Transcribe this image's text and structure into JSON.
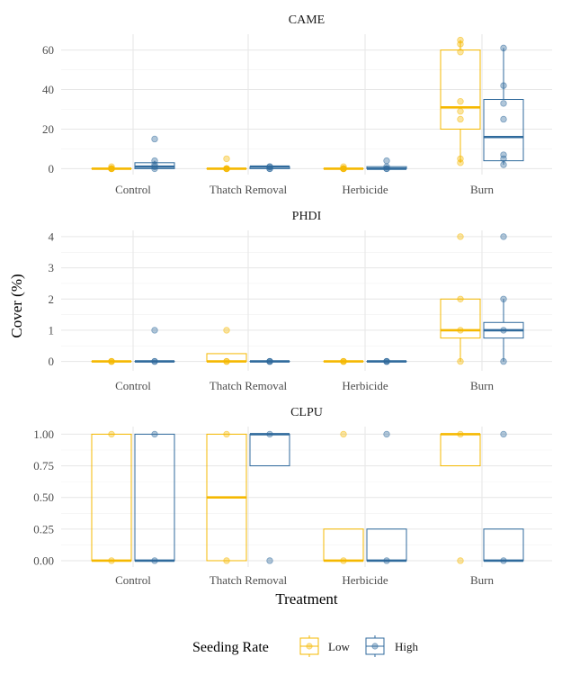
{
  "chart_data": {
    "type": "box",
    "xlabel": "Treatment",
    "ylabel": "Cover (%)",
    "categories": [
      "Control",
      "Thatch Removal",
      "Herbicide",
      "Burn"
    ],
    "legend": {
      "title": "Seeding Rate",
      "position": "bottom",
      "entries": [
        {
          "name": "Low",
          "color": "#F5B800"
        },
        {
          "name": "High",
          "color": "#2F6A9C"
        }
      ]
    },
    "grid": true,
    "panels": [
      {
        "title": "CAME",
        "ylim": [
          -3,
          68
        ],
        "yticks": [
          0,
          20,
          40,
          60
        ],
        "ytick_labels": [
          "0",
          "20",
          "40",
          "60"
        ],
        "series": [
          {
            "name": "Low",
            "boxes": [
              {
                "q1": 0,
                "median": 0,
                "q3": 0,
                "whisker_low": 0,
                "whisker_high": 0,
                "points": [
                  0,
                  0,
                  0,
                  1,
                  0,
                  0
                ]
              },
              {
                "q1": 0,
                "median": 0,
                "q3": 0,
                "whisker_low": 0,
                "whisker_high": 0,
                "points": [
                  0,
                  0,
                  5,
                  0,
                  0,
                  0
                ]
              },
              {
                "q1": 0,
                "median": 0,
                "q3": 0,
                "whisker_low": 0,
                "whisker_high": 0,
                "points": [
                  0,
                  0,
                  1,
                  0,
                  0,
                  0
                ]
              },
              {
                "q1": 20,
                "median": 31,
                "q3": 60,
                "whisker_low": 3,
                "whisker_high": 65,
                "points": [
                  3,
                  5,
                  25,
                  29,
                  34,
                  59,
                  63,
                  65
                ]
              }
            ]
          },
          {
            "name": "High",
            "boxes": [
              {
                "q1": 0,
                "median": 1,
                "q3": 3,
                "whisker_low": 0,
                "whisker_high": 4,
                "points": [
                  0,
                  1,
                  2,
                  4,
                  15
                ]
              },
              {
                "q1": 0,
                "median": 1,
                "q3": 1,
                "whisker_low": 0,
                "whisker_high": 1,
                "points": [
                  0,
                  1,
                  0,
                  1
                ]
              },
              {
                "q1": 0,
                "median": 0,
                "q3": 1,
                "whisker_low": 0,
                "whisker_high": 1,
                "points": [
                  0,
                  0,
                  1,
                  4
                ]
              },
              {
                "q1": 4,
                "median": 16,
                "q3": 35,
                "whisker_low": 2,
                "whisker_high": 61,
                "points": [
                  2,
                  5,
                  7,
                  25,
                  33,
                  42,
                  61
                ]
              }
            ]
          }
        ]
      },
      {
        "title": "PHDI",
        "ylim": [
          -0.3,
          4.2
        ],
        "yticks": [
          0,
          1,
          2,
          3,
          4
        ],
        "ytick_labels": [
          "0",
          "1",
          "2",
          "3",
          "4"
        ],
        "series": [
          {
            "name": "Low",
            "boxes": [
              {
                "q1": 0,
                "median": 0,
                "q3": 0,
                "whisker_low": 0,
                "whisker_high": 0,
                "points": [
                  0,
                  0,
                  0
                ]
              },
              {
                "q1": 0,
                "median": 0,
                "q3": 0.25,
                "whisker_low": 0,
                "whisker_high": 0.25,
                "points": [
                  0,
                  0,
                  1
                ]
              },
              {
                "q1": 0,
                "median": 0,
                "q3": 0,
                "whisker_low": 0,
                "whisker_high": 0,
                "points": [
                  0,
                  0,
                  0
                ]
              },
              {
                "q1": 0.75,
                "median": 1,
                "q3": 2,
                "whisker_low": 0,
                "whisker_high": 2,
                "points": [
                  0,
                  1,
                  2,
                  4
                ]
              }
            ]
          },
          {
            "name": "High",
            "boxes": [
              {
                "q1": 0,
                "median": 0,
                "q3": 0,
                "whisker_low": 0,
                "whisker_high": 0,
                "points": [
                  0,
                  0,
                  1
                ]
              },
              {
                "q1": 0,
                "median": 0,
                "q3": 0,
                "whisker_low": 0,
                "whisker_high": 0,
                "points": [
                  0,
                  0,
                  0
                ]
              },
              {
                "q1": 0,
                "median": 0,
                "q3": 0,
                "whisker_low": 0,
                "whisker_high": 0,
                "points": [
                  0,
                  0,
                  0
                ]
              },
              {
                "q1": 0.75,
                "median": 1,
                "q3": 1.25,
                "whisker_low": 0,
                "whisker_high": 2,
                "points": [
                  0,
                  1,
                  2,
                  4
                ]
              }
            ]
          }
        ]
      },
      {
        "title": "CLPU",
        "ylim": [
          -0.05,
          1.06
        ],
        "yticks": [
          0,
          0.25,
          0.5,
          0.75,
          1
        ],
        "ytick_labels": [
          "0.00",
          "0.25",
          "0.50",
          "0.75",
          "1.00"
        ],
        "series": [
          {
            "name": "Low",
            "boxes": [
              {
                "q1": 0,
                "median": 0,
                "q3": 1,
                "whisker_low": 0,
                "whisker_high": 1,
                "points": [
                  0,
                  1
                ]
              },
              {
                "q1": 0,
                "median": 0.5,
                "q3": 1,
                "whisker_low": 0,
                "whisker_high": 1,
                "points": [
                  0,
                  1
                ]
              },
              {
                "q1": 0,
                "median": 0,
                "q3": 0.25,
                "whisker_low": 0,
                "whisker_high": 0.25,
                "points": [
                  0,
                  1
                ]
              },
              {
                "q1": 0.75,
                "median": 1,
                "q3": 1,
                "whisker_low": 0.75,
                "whisker_high": 1,
                "points": [
                  0,
                  1
                ]
              }
            ]
          },
          {
            "name": "High",
            "boxes": [
              {
                "q1": 0,
                "median": 0,
                "q3": 1,
                "whisker_low": 0,
                "whisker_high": 1,
                "points": [
                  0,
                  1
                ]
              },
              {
                "q1": 0.75,
                "median": 1,
                "q3": 1,
                "whisker_low": 0.75,
                "whisker_high": 1,
                "points": [
                  0,
                  1
                ]
              },
              {
                "q1": 0,
                "median": 0,
                "q3": 0.25,
                "whisker_low": 0,
                "whisker_high": 0.25,
                "points": [
                  0,
                  1
                ]
              },
              {
                "q1": 0,
                "median": 0,
                "q3": 0.25,
                "whisker_low": 0,
                "whisker_high": 0.25,
                "points": [
                  0,
                  1
                ]
              }
            ]
          }
        ]
      }
    ]
  }
}
